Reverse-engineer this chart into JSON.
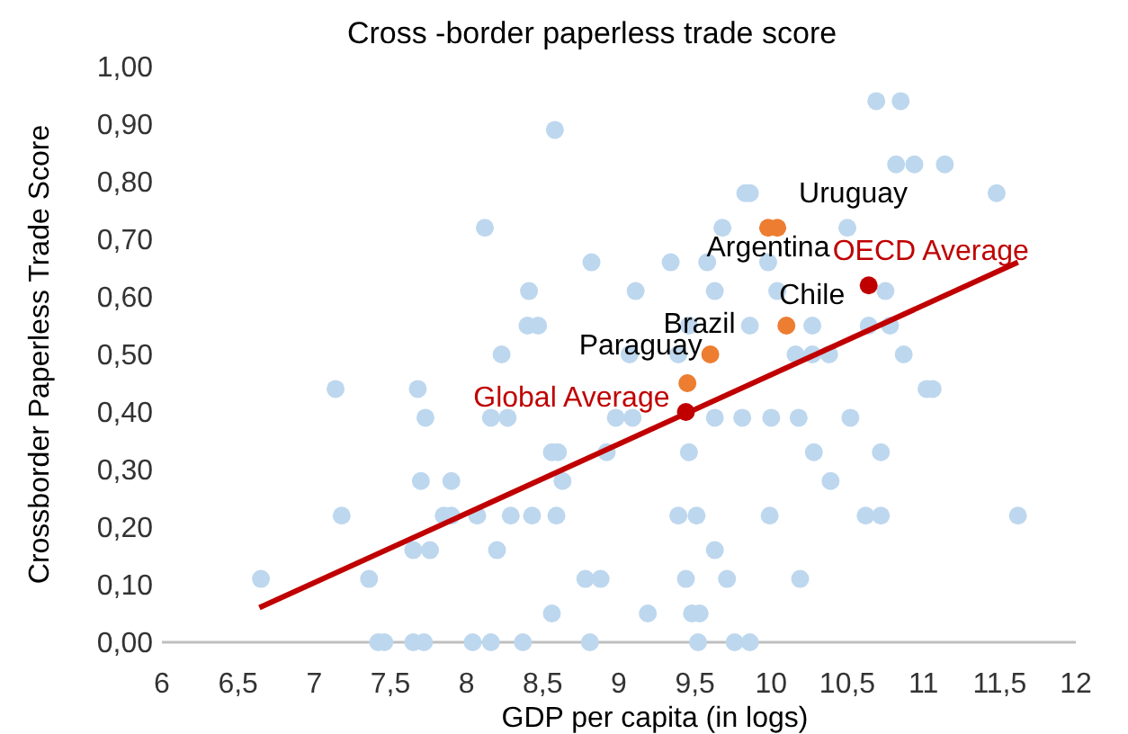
{
  "chart_data": {
    "type": "scatter",
    "title": "Cross -border paperless trade score",
    "xlabel": "GDP per capita (in logs)",
    "ylabel": "Crossborder Paperless Trade Score",
    "xlim": [
      6,
      12
    ],
    "xticks": [
      6,
      {
        "value": 6.5,
        "label": "6,5"
      },
      7,
      {
        "value": 7.5,
        "label": "7,5"
      },
      8,
      {
        "value": 8.5,
        "label": "8,5"
      },
      9,
      {
        "value": 9.5,
        "label": "9,5"
      },
      10,
      {
        "value": 10.5,
        "label": "10,5"
      },
      11,
      {
        "value": 11.5,
        "label": "11,5"
      },
      12
    ],
    "ylim": [
      0,
      1
    ],
    "yticks": [
      {
        "value": 0,
        "label": "0,00"
      },
      {
        "value": 0.1,
        "label": "0,10"
      },
      {
        "value": 0.2,
        "label": "0,20"
      },
      {
        "value": 0.3,
        "label": "0,30"
      },
      {
        "value": 0.4,
        "label": "0,40"
      },
      {
        "value": 0.5,
        "label": "0,50"
      },
      {
        "value": 0.6,
        "label": "0,60"
      },
      {
        "value": 0.7,
        "label": "0,70"
      },
      {
        "value": 0.8,
        "label": "0,80"
      },
      {
        "value": 0.9,
        "label": "0,90"
      },
      {
        "value": 1,
        "label": "1,00"
      }
    ],
    "grid": false,
    "marker": "circle",
    "series": [
      {
        "color": "#bdd7ee",
        "x": [
          6.65,
          7.14,
          7.18,
          7.36,
          7.42,
          7.46,
          7.68,
          7.73,
          7.7,
          7.9,
          7.85,
          7.9,
          8.07,
          7.65,
          7.76,
          7.65,
          7.72,
          8.04,
          8.12,
          8.58,
          8.41,
          8.4,
          8.47,
          8.23,
          8.16,
          8.27,
          8.56,
          8.6,
          8.63,
          8.29,
          8.43,
          8.59,
          8.2,
          8.78,
          8.88,
          8.56,
          9.19,
          8.16,
          8.37,
          8.81,
          8.82,
          9.11,
          9.07,
          8.98,
          9.09,
          8.92,
          9.34,
          9.68,
          9.83,
          9.86,
          9.58,
          9.63,
          9.46,
          9.39,
          9.63,
          9.81,
          10.0,
          9.46,
          9.39,
          9.51,
          9.99,
          9.63,
          9.44,
          9.71,
          9.48,
          9.53,
          9.52,
          9.76,
          9.86,
          9.98,
          10.04,
          9.86,
          10.69,
          10.85,
          10.82,
          10.94,
          11.14,
          11.48,
          10.5,
          10.27,
          10.64,
          10.78,
          10.75,
          10.16,
          10.27,
          10.38,
          10.87,
          11.02,
          11.06,
          10.18,
          10.52,
          10.28,
          10.72,
          10.39,
          10.62,
          10.72,
          11.62,
          10.19
        ],
        "values": [
          0.11,
          0.44,
          0.22,
          0.11,
          0,
          0,
          0.44,
          0.39,
          0.28,
          0.28,
          0.22,
          0.22,
          0.22,
          0.16,
          0.16,
          0,
          0,
          0,
          0.72,
          0.89,
          0.61,
          0.55,
          0.55,
          0.5,
          0.39,
          0.39,
          0.33,
          0.33,
          0.28,
          0.22,
          0.22,
          0.22,
          0.16,
          0.11,
          0.11,
          0.05,
          0.05,
          0,
          0,
          0,
          0.66,
          0.61,
          0.5,
          0.39,
          0.39,
          0.33,
          0.66,
          0.72,
          0.78,
          0.78,
          0.66,
          0.61,
          0.55,
          0.5,
          0.39,
          0.39,
          0.39,
          0.33,
          0.22,
          0.22,
          0.22,
          0.16,
          0.11,
          0.11,
          0.05,
          0.05,
          0,
          0,
          0,
          0.66,
          0.61,
          0.55,
          0.94,
          0.94,
          0.83,
          0.83,
          0.83,
          0.78,
          0.72,
          0.55,
          0.55,
          0.55,
          0.61,
          0.5,
          0.5,
          0.5,
          0.5,
          0.44,
          0.44,
          0.39,
          0.39,
          0.33,
          0.33,
          0.28,
          0.22,
          0.22,
          0.22,
          0.11
        ]
      },
      {
        "color": "#ed7d31",
        "x": [
          10.04,
          9.98,
          10.1,
          9.6,
          9.45
        ],
        "values": [
          0.72,
          0.72,
          0.55,
          0.5,
          0.45
        ]
      },
      {
        "type": "line",
        "marker": "none",
        "color": "#c00000",
        "x": [
          6.64,
          11.62
        ],
        "values": [
          0.06,
          0.66
        ]
      },
      {
        "color": "#c00000",
        "x": [
          9.44,
          10.64
        ],
        "values": [
          0.4,
          0.62
        ]
      }
    ],
    "annotations": [
      {
        "text": "Uruguay",
        "x": 10.04,
        "y": 0.72
      },
      {
        "text": "Argentina",
        "x": 9.98,
        "y": 0.72
      },
      {
        "text": "Chile",
        "x": 10.1,
        "y": 0.55
      },
      {
        "text": "Brazil",
        "x": 9.6,
        "y": 0.5
      },
      {
        "text": "Paraguay",
        "x": 9.45,
        "y": 0.45
      },
      {
        "text": "Global Average",
        "x": 9.44,
        "y": 0.4
      },
      {
        "text": "OECD Average",
        "x": 10.64,
        "y": 0.62
      }
    ]
  }
}
